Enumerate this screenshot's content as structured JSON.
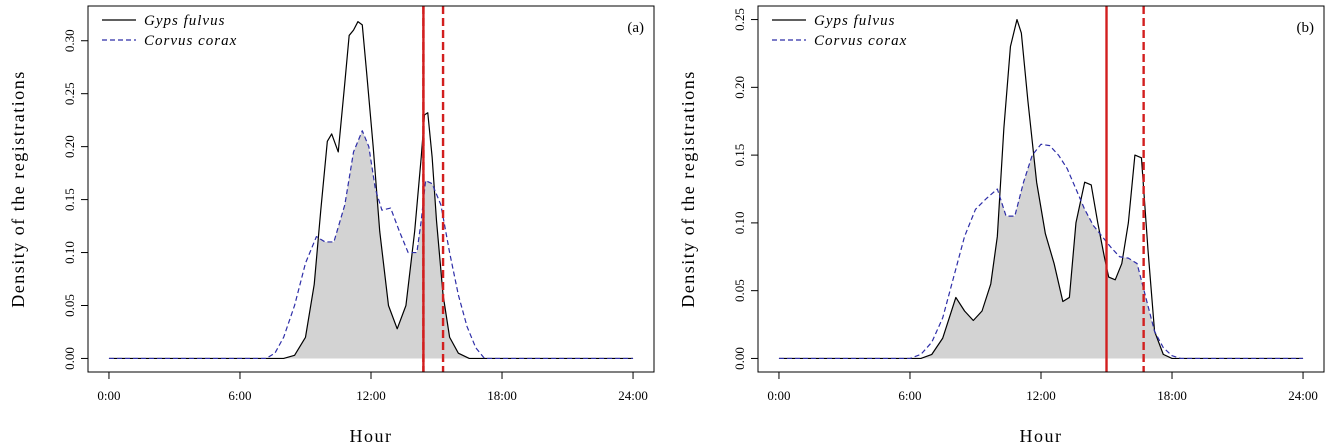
{
  "colors": {
    "gyps_line": "#000000",
    "corvus_line": "#2e2ea8",
    "overlap_fill": "#d3d3d3",
    "vline": "#d21f1f"
  },
  "chart_data": [
    {
      "type": "line",
      "panel_label": "(a)",
      "xlabel": "Hour",
      "ylabel": "Density of the registrations",
      "xlim": [
        0,
        24
      ],
      "ylim": [
        0,
        0.32
      ],
      "x_ticks": [
        0,
        6,
        12,
        18,
        24
      ],
      "x_tick_labels": [
        "0:00",
        "6:00",
        "12:00",
        "18:00",
        "24:00"
      ],
      "y_ticks": [
        0,
        0.05,
        0.1,
        0.15,
        0.2,
        0.25,
        0.3
      ],
      "y_tick_labels": [
        "0.00",
        "0.05",
        "0.10",
        "0.15",
        "0.20",
        "0.25",
        "0.30"
      ],
      "grid": false,
      "legend": "top-left",
      "overlap_shaded": true,
      "series": [
        {
          "name": "Gyps fulvus",
          "style": "solid",
          "x": [
            0,
            8,
            8.5,
            9,
            9.4,
            9.7,
            10.0,
            10.2,
            10.5,
            10.8,
            11.0,
            11.2,
            11.4,
            11.6,
            11.8,
            12.1,
            12.4,
            12.8,
            13.2,
            13.6,
            14.0,
            14.3,
            14.45,
            14.6,
            14.8,
            15.0,
            15.3,
            15.6,
            16.0,
            16.5,
            24
          ],
          "y": [
            0,
            0,
            0.003,
            0.02,
            0.07,
            0.14,
            0.205,
            0.212,
            0.195,
            0.26,
            0.305,
            0.31,
            0.318,
            0.315,
            0.27,
            0.2,
            0.12,
            0.05,
            0.028,
            0.05,
            0.12,
            0.19,
            0.23,
            0.232,
            0.19,
            0.13,
            0.06,
            0.02,
            0.005,
            0,
            0
          ]
        },
        {
          "name": "Corvus corax",
          "style": "dashed",
          "x": [
            0,
            7.2,
            7.6,
            8.0,
            8.5,
            9.0,
            9.5,
            9.9,
            10.3,
            10.8,
            11.2,
            11.6,
            11.9,
            12.2,
            12.5,
            12.9,
            13.3,
            13.7,
            14.1,
            14.3,
            14.5,
            14.8,
            15.2,
            15.6,
            16.0,
            16.4,
            16.8,
            17.2,
            24
          ],
          "y": [
            0,
            0,
            0.005,
            0.02,
            0.05,
            0.09,
            0.115,
            0.11,
            0.11,
            0.145,
            0.195,
            0.215,
            0.2,
            0.16,
            0.14,
            0.142,
            0.12,
            0.1,
            0.1,
            0.13,
            0.168,
            0.165,
            0.145,
            0.1,
            0.06,
            0.03,
            0.01,
            0,
            0
          ]
        }
      ],
      "vlines": [
        {
          "x": 14.4,
          "style": "solid"
        },
        {
          "x": 14.4,
          "style": "dashed"
        },
        {
          "x": 15.3,
          "style": "dashed"
        }
      ]
    },
    {
      "type": "line",
      "panel_label": "(b)",
      "xlabel": "Hour",
      "ylabel": "Density of the registrations",
      "xlim": [
        0,
        24
      ],
      "ylim": [
        0,
        0.25
      ],
      "x_ticks": [
        0,
        6,
        12,
        18,
        24
      ],
      "x_tick_labels": [
        "0:00",
        "6:00",
        "12:00",
        "18:00",
        "24:00"
      ],
      "y_ticks": [
        0,
        0.05,
        0.1,
        0.15,
        0.2,
        0.25
      ],
      "y_tick_labels": [
        "0.00",
        "0.05",
        "0.10",
        "0.15",
        "0.20",
        "0.25"
      ],
      "grid": false,
      "legend": "top-left",
      "overlap_shaded": true,
      "series": [
        {
          "name": "Gyps fulvus",
          "style": "solid",
          "x": [
            0,
            6.5,
            7.0,
            7.5,
            7.8,
            8.1,
            8.5,
            8.9,
            9.3,
            9.7,
            10.0,
            10.3,
            10.6,
            10.9,
            11.1,
            11.4,
            11.8,
            12.2,
            12.6,
            13.0,
            13.3,
            13.6,
            14.0,
            14.3,
            14.6,
            14.9,
            15.1,
            15.4,
            15.7,
            16.0,
            16.3,
            16.6,
            16.9,
            17.2,
            17.6,
            18.0,
            24
          ],
          "y": [
            0,
            0,
            0.003,
            0.015,
            0.03,
            0.045,
            0.035,
            0.028,
            0.035,
            0.055,
            0.09,
            0.17,
            0.23,
            0.25,
            0.24,
            0.19,
            0.13,
            0.092,
            0.07,
            0.042,
            0.045,
            0.1,
            0.13,
            0.128,
            0.1,
            0.075,
            0.06,
            0.058,
            0.07,
            0.1,
            0.15,
            0.148,
            0.08,
            0.02,
            0.003,
            0,
            0
          ]
        },
        {
          "name": "Corvus corax",
          "style": "dashed",
          "x": [
            0,
            6.0,
            6.5,
            7.0,
            7.5,
            8.0,
            8.5,
            9.0,
            9.5,
            10.0,
            10.4,
            10.8,
            11.2,
            11.6,
            12.0,
            12.4,
            12.8,
            13.2,
            13.6,
            14.0,
            14.4,
            14.8,
            15.2,
            15.6,
            16.0,
            16.4,
            16.8,
            17.2,
            17.6,
            18.0,
            18.4,
            24
          ],
          "y": [
            0,
            0,
            0.003,
            0.012,
            0.03,
            0.06,
            0.09,
            0.11,
            0.118,
            0.125,
            0.105,
            0.105,
            0.13,
            0.15,
            0.158,
            0.157,
            0.15,
            0.14,
            0.125,
            0.11,
            0.098,
            0.09,
            0.082,
            0.075,
            0.074,
            0.07,
            0.045,
            0.02,
            0.008,
            0.002,
            0,
            0
          ]
        }
      ],
      "vlines": [
        {
          "x": 15.0,
          "style": "solid"
        },
        {
          "x": 16.7,
          "style": "dashed"
        }
      ]
    }
  ]
}
